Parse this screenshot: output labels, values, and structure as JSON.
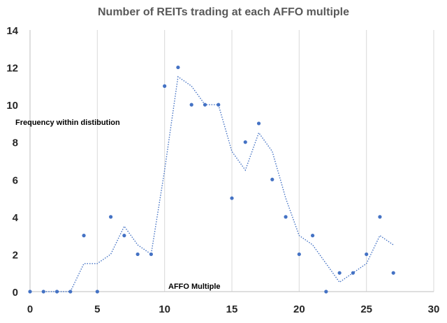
{
  "chart_data": {
    "type": "scatter",
    "title": "Number of REITs trading at each AFFO multiple",
    "xlabel": "AFFO Multiple",
    "ylabel": "Frequency within distibution",
    "xlim": [
      0,
      30
    ],
    "ylim": [
      0,
      14
    ],
    "xticks": [
      0,
      5,
      10,
      15,
      20,
      25,
      30
    ],
    "yticks": [
      0,
      2,
      4,
      6,
      8,
      10,
      12,
      14
    ],
    "grid": "vertical",
    "colors": {
      "points": "#4472c4",
      "trend": "#4472c4"
    },
    "series": [
      {
        "type": "scatter",
        "x": [
          0,
          1,
          2,
          3,
          4,
          5,
          6,
          7,
          8,
          9,
          10,
          11,
          12,
          13,
          14,
          15,
          16,
          17,
          18,
          19,
          20,
          21,
          22,
          23,
          24,
          25,
          26,
          27
        ],
        "y": [
          0,
          0,
          0,
          0,
          3,
          0,
          4,
          3,
          2,
          2,
          11,
          12,
          10,
          10,
          10,
          5,
          8,
          9,
          6,
          4,
          2,
          3,
          0,
          1,
          1,
          2,
          4,
          1
        ]
      },
      {
        "type": "moving-average-trendline",
        "x": [
          1,
          2,
          3,
          4,
          5,
          6,
          7,
          8,
          9,
          10,
          11,
          12,
          13,
          14,
          15,
          16,
          17,
          18,
          19,
          20,
          21,
          22,
          23,
          24,
          25,
          26,
          27
        ],
        "y": [
          0,
          0,
          0,
          1.5,
          1.5,
          2,
          3.5,
          2.5,
          2,
          6.5,
          11.5,
          11,
          10,
          10,
          7.5,
          6.5,
          8.5,
          7.5,
          5,
          3,
          2.5,
          1.5,
          0.5,
          1,
          1.5,
          3,
          2.5
        ]
      }
    ]
  }
}
